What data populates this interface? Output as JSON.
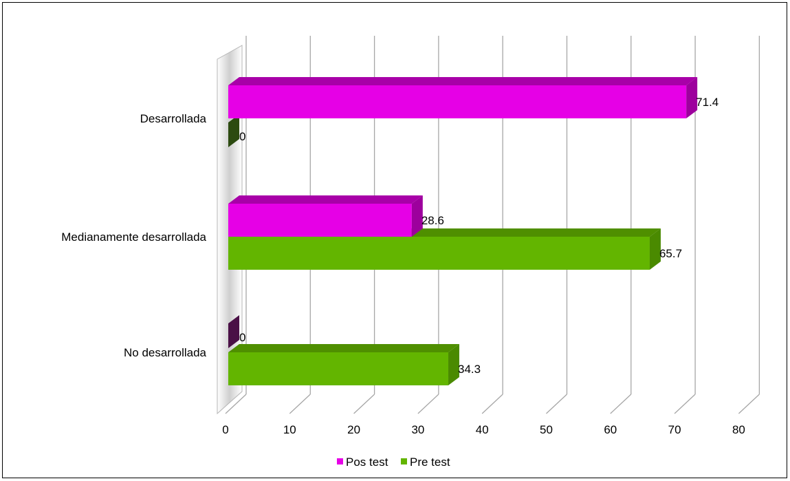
{
  "chart_data": {
    "type": "bar",
    "orientation": "horizontal",
    "style": "3d-clustered",
    "categories": [
      "No desarrollada",
      "Medianamente desarrollada",
      "Desarrollada"
    ],
    "series": [
      {
        "name": "Pre test",
        "values": [
          34.3,
          65.7,
          0
        ],
        "color": "#63b500",
        "side_color": "#4a8a00",
        "top_color": "#4f8f00"
      },
      {
        "name": "Pos test",
        "values": [
          0,
          28.6,
          71.4
        ],
        "color": "#e600e6",
        "side_color": "#9d009d",
        "top_color": "#a800a8"
      }
    ],
    "data_labels": {
      "Pre test": [
        "34.3",
        "65.7",
        "0"
      ],
      "Pos test": [
        "0",
        "28.6",
        "71.4"
      ]
    },
    "xlim": [
      0,
      80
    ],
    "ticks": [
      "0",
      "10",
      "20",
      "30",
      "40",
      "50",
      "60",
      "70",
      "80"
    ],
    "tick_values": [
      0,
      10,
      20,
      30,
      40,
      50,
      60,
      70,
      80
    ],
    "grid": true,
    "legend_position": "bottom",
    "legend": [
      "Pos test",
      "Pre test"
    ],
    "title": "",
    "xlabel": "",
    "ylabel": ""
  }
}
